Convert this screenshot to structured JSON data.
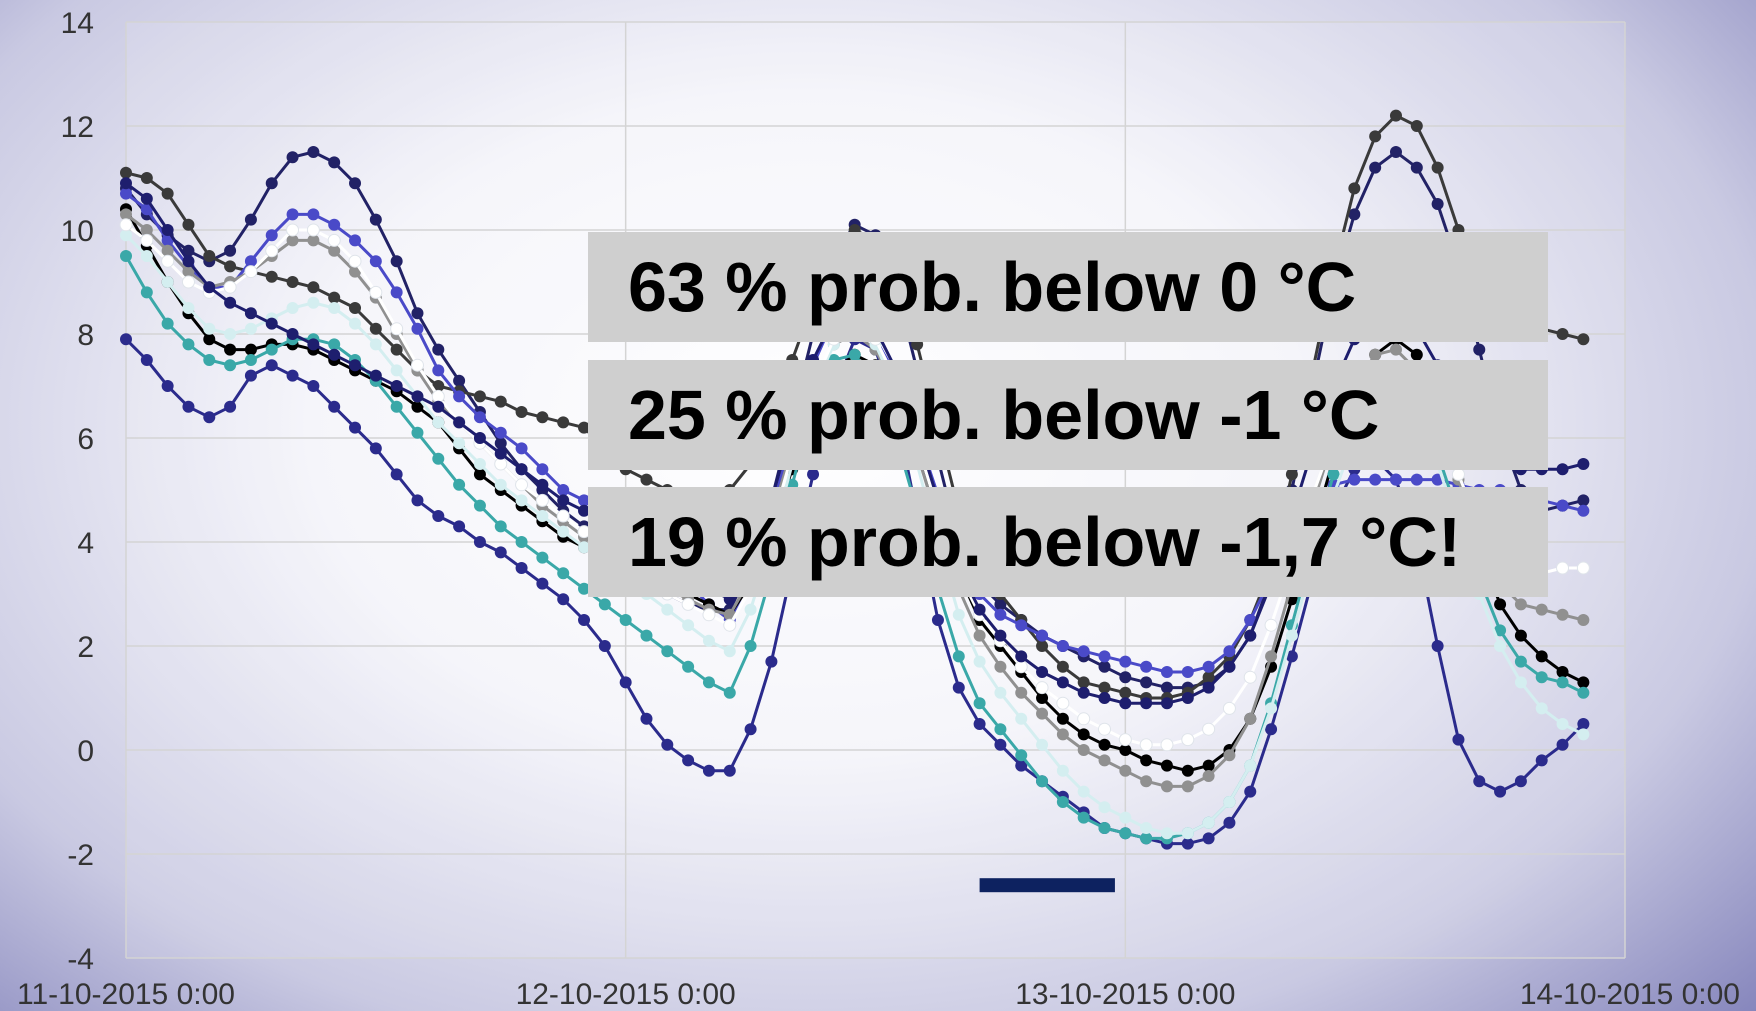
{
  "annotations": [
    "63 % prob. below 0 °C",
    "25 % prob. below -1 °C",
    "19 % prob. below -1,7 °C!"
  ],
  "highlight_color": "#0d2260",
  "chart_data": {
    "type": "line",
    "title": "",
    "xlabel": "",
    "ylabel": "",
    "ylim": [
      -4,
      14
    ],
    "yticks": [
      "-4",
      "-2",
      "0",
      "2",
      "4",
      "6",
      "8",
      "10",
      "12",
      "14"
    ],
    "xticks": [
      "11-10-2015 0:00",
      "12-10-2015 0:00",
      "13-10-2015 0:00",
      "14-10-2015 0:00"
    ],
    "x_start_label": "11-10-2015 0:00",
    "x_step_hours": 1,
    "grid": true,
    "legend": "none",
    "highlight_bar": {
      "x_from": 41.0,
      "x_to": 47.5,
      "y": -2.6
    },
    "series": [
      {
        "color": "#2b2b8c",
        "values": [
          7.9,
          7.5,
          7.0,
          6.6,
          6.4,
          6.6,
          7.2,
          7.4,
          7.2,
          7.0,
          6.6,
          6.2,
          5.8,
          5.3,
          4.8,
          4.5,
          4.3,
          4.0,
          3.8,
          3.5,
          3.2,
          2.9,
          2.5,
          2.0,
          1.3,
          0.6,
          0.1,
          -0.2,
          -0.4,
          -0.4,
          0.4,
          1.7,
          3.5,
          5.3,
          6.9,
          7.9,
          7.7,
          6.5,
          4.5,
          2.5,
          1.2,
          0.5,
          0.1,
          -0.3,
          -0.6,
          -0.9,
          -1.2,
          -1.5,
          -1.6,
          -1.7,
          -1.8,
          -1.8,
          -1.7,
          -1.4,
          -0.8,
          0.4,
          1.8,
          3.3,
          4.6,
          5.4,
          5.6,
          5.2,
          4.0,
          2.0,
          0.2,
          -0.6,
          -0.8,
          -0.6,
          -0.2,
          0.1,
          0.5
        ]
      },
      {
        "color": "#222266",
        "values": [
          10.8,
          10.3,
          9.9,
          9.6,
          9.4,
          9.6,
          10.2,
          10.9,
          11.4,
          11.5,
          11.3,
          10.9,
          10.2,
          9.4,
          8.4,
          7.7,
          7.1,
          6.5,
          5.9,
          5.4,
          5.0,
          4.6,
          4.3,
          3.9,
          3.5,
          3.2,
          3.0,
          2.8,
          2.7,
          2.7,
          3.5,
          4.8,
          6.4,
          8.0,
          9.5,
          10.1,
          9.9,
          8.9,
          7.3,
          5.6,
          4.0,
          3.2,
          2.8,
          2.5,
          2.2,
          2.0,
          1.8,
          1.6,
          1.4,
          1.3,
          1.2,
          1.2,
          1.3,
          1.6,
          2.2,
          3.3,
          5.0,
          7.0,
          8.9,
          10.3,
          11.2,
          11.5,
          11.2,
          10.5,
          9.3,
          7.7,
          6.1,
          5.0,
          4.6,
          4.7,
          4.8
        ]
      },
      {
        "color": "#3a3a3a",
        "values": [
          11.1,
          11.0,
          10.7,
          10.1,
          9.5,
          9.3,
          9.2,
          9.1,
          9.0,
          8.9,
          8.7,
          8.5,
          8.1,
          7.7,
          7.3,
          7.0,
          6.9,
          6.8,
          6.7,
          6.5,
          6.4,
          6.3,
          6.2,
          5.8,
          5.4,
          5.2,
          5.0,
          4.9,
          4.9,
          5.0,
          5.5,
          6.5,
          7.5,
          8.6,
          9.5,
          10.0,
          9.8,
          9.0,
          7.8,
          6.2,
          4.6,
          3.6,
          3.0,
          2.5,
          2.0,
          1.6,
          1.3,
          1.2,
          1.1,
          1.0,
          1.0,
          1.1,
          1.4,
          1.8,
          2.5,
          3.5,
          5.3,
          7.3,
          9.2,
          10.8,
          11.8,
          12.2,
          12.0,
          11.2,
          10.0,
          9.0,
          8.4,
          8.2,
          8.1,
          8.0,
          7.9
        ]
      },
      {
        "color": "#4a4ac8",
        "values": [
          10.7,
          10.4,
          9.8,
          9.3,
          8.9,
          8.9,
          9.4,
          9.9,
          10.3,
          10.3,
          10.1,
          9.8,
          9.4,
          8.8,
          8.1,
          7.3,
          6.8,
          6.4,
          6.1,
          5.8,
          5.4,
          5.0,
          4.8,
          4.6,
          4.3,
          4.0,
          3.6,
          3.2,
          2.8,
          2.5,
          3.3,
          4.6,
          6.0,
          7.4,
          8.3,
          8.3,
          7.9,
          7.2,
          6.1,
          4.9,
          3.7,
          3.0,
          2.6,
          2.4,
          2.2,
          2.0,
          1.9,
          1.8,
          1.7,
          1.6,
          1.5,
          1.5,
          1.6,
          1.9,
          2.5,
          3.3,
          4.2,
          4.8,
          5.1,
          5.2,
          5.2,
          5.2,
          5.2,
          5.2,
          5.1,
          5.0,
          5.0,
          4.9,
          4.8,
          4.7,
          4.6
        ]
      },
      {
        "color": "#000000",
        "values": [
          10.4,
          9.7,
          9.0,
          8.4,
          7.9,
          7.7,
          7.7,
          7.8,
          7.8,
          7.7,
          7.5,
          7.3,
          7.1,
          6.9,
          6.6,
          6.3,
          5.8,
          5.3,
          5.0,
          4.7,
          4.4,
          4.1,
          3.9,
          3.8,
          3.6,
          3.4,
          3.2,
          3.0,
          2.8,
          2.6,
          3.2,
          4.2,
          5.4,
          6.5,
          7.3,
          7.6,
          7.4,
          6.8,
          5.8,
          4.6,
          3.4,
          2.5,
          2.0,
          1.5,
          1.0,
          0.6,
          0.3,
          0.1,
          0.0,
          -0.2,
          -0.3,
          -0.4,
          -0.3,
          0.0,
          0.6,
          1.6,
          2.9,
          4.2,
          5.6,
          6.8,
          7.6,
          7.9,
          7.6,
          6.7,
          5.3,
          3.9,
          2.8,
          2.2,
          1.8,
          1.5,
          1.3
        ]
      },
      {
        "color": "#3aa8a8",
        "values": [
          9.5,
          8.8,
          8.2,
          7.8,
          7.5,
          7.4,
          7.5,
          7.7,
          7.9,
          7.9,
          7.8,
          7.5,
          7.1,
          6.6,
          6.1,
          5.6,
          5.1,
          4.7,
          4.3,
          4.0,
          3.7,
          3.4,
          3.1,
          2.8,
          2.5,
          2.2,
          1.9,
          1.6,
          1.3,
          1.1,
          2.0,
          3.4,
          5.1,
          6.6,
          7.5,
          7.6,
          7.1,
          6.0,
          4.6,
          3.1,
          1.8,
          0.9,
          0.4,
          -0.1,
          -0.6,
          -1.0,
          -1.3,
          -1.5,
          -1.6,
          -1.7,
          -1.7,
          -1.6,
          -1.4,
          -1.0,
          -0.3,
          0.9,
          2.4,
          3.9,
          5.3,
          6.3,
          6.9,
          7.0,
          6.6,
          5.7,
          4.5,
          3.3,
          2.3,
          1.7,
          1.4,
          1.3,
          1.1
        ]
      },
      {
        "color": "#909090",
        "values": [
          10.3,
          10.0,
          9.6,
          9.2,
          8.9,
          9.0,
          9.2,
          9.5,
          9.8,
          9.8,
          9.6,
          9.2,
          8.7,
          8.0,
          7.3,
          6.7,
          6.3,
          5.9,
          5.5,
          5.1,
          4.7,
          4.4,
          4.1,
          3.8,
          3.5,
          3.3,
          3.1,
          2.9,
          2.7,
          2.6,
          3.3,
          4.5,
          5.8,
          7.0,
          7.8,
          8.0,
          7.7,
          6.9,
          5.7,
          4.4,
          3.1,
          2.2,
          1.6,
          1.1,
          0.7,
          0.3,
          0.0,
          -0.2,
          -0.4,
          -0.6,
          -0.7,
          -0.7,
          -0.5,
          -0.1,
          0.6,
          1.8,
          3.2,
          4.7,
          6.0,
          7.0,
          7.6,
          7.7,
          7.3,
          6.4,
          5.2,
          4.0,
          3.2,
          2.8,
          2.7,
          2.6,
          2.5
        ]
      },
      {
        "color": "#d4eef0",
        "values": [
          9.9,
          9.5,
          9.0,
          8.5,
          8.1,
          8.0,
          8.1,
          8.3,
          8.5,
          8.6,
          8.5,
          8.2,
          7.8,
          7.3,
          6.8,
          6.3,
          5.9,
          5.5,
          5.1,
          4.8,
          4.5,
          4.2,
          3.9,
          3.6,
          3.3,
          3.0,
          2.7,
          2.4,
          2.1,
          1.9,
          2.7,
          4.0,
          5.5,
          6.9,
          7.8,
          8.1,
          7.8,
          6.9,
          5.5,
          4.0,
          2.6,
          1.7,
          1.1,
          0.6,
          0.1,
          -0.4,
          -0.8,
          -1.1,
          -1.3,
          -1.5,
          -1.6,
          -1.6,
          -1.4,
          -1.0,
          -0.3,
          0.8,
          2.2,
          3.6,
          4.9,
          6.0,
          6.6,
          6.8,
          6.4,
          5.5,
          4.3,
          3.0,
          2.0,
          1.3,
          0.8,
          0.5,
          0.3
        ]
      },
      {
        "color": "#ffffff",
        "values": [
          10.1,
          9.8,
          9.4,
          9.0,
          8.8,
          8.9,
          9.2,
          9.6,
          10.0,
          10.0,
          9.8,
          9.4,
          8.8,
          8.1,
          7.4,
          6.8,
          6.3,
          5.9,
          5.5,
          5.1,
          4.8,
          4.5,
          4.2,
          3.9,
          3.6,
          3.3,
          3.0,
          2.8,
          2.6,
          2.4,
          3.1,
          4.3,
          5.7,
          7.0,
          7.9,
          8.2,
          7.9,
          7.1,
          5.9,
          4.6,
          3.4,
          2.6,
          2.1,
          1.6,
          1.2,
          0.9,
          0.6,
          0.4,
          0.2,
          0.1,
          0.1,
          0.2,
          0.4,
          0.8,
          1.4,
          2.4,
          3.6,
          4.9,
          6.0,
          6.8,
          7.2,
          7.3,
          7.0,
          6.3,
          5.3,
          4.3,
          3.6,
          3.4,
          3.4,
          3.5,
          3.5
        ]
      },
      {
        "color": "#1e1e6e",
        "values": [
          10.9,
          10.6,
          10.0,
          9.4,
          8.9,
          8.6,
          8.4,
          8.2,
          8.0,
          7.8,
          7.6,
          7.4,
          7.2,
          7.0,
          6.8,
          6.6,
          6.3,
          6.0,
          5.7,
          5.4,
          5.1,
          4.8,
          4.6,
          4.4,
          4.2,
          4.0,
          3.7,
          3.4,
          3.1,
          2.9,
          3.6,
          4.8,
          6.2,
          7.5,
          8.3,
          8.5,
          8.1,
          7.3,
          6.1,
          4.8,
          3.5,
          2.7,
          2.2,
          1.8,
          1.5,
          1.3,
          1.1,
          1.0,
          0.9,
          0.9,
          0.9,
          1.0,
          1.2,
          1.6,
          2.2,
          3.2,
          4.5,
          5.8,
          7.0,
          7.9,
          8.3,
          8.4,
          8.1,
          7.4,
          6.5,
          5.8,
          5.5,
          5.4,
          5.4,
          5.4,
          5.5
        ]
      }
    ]
  }
}
